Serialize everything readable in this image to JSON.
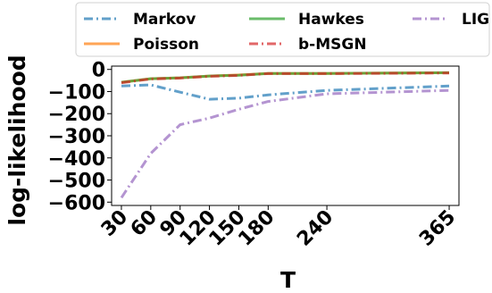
{
  "chart_data": {
    "type": "line",
    "xlabel": "T",
    "ylabel": "log-likelihood",
    "x": [
      30,
      60,
      90,
      120,
      150,
      180,
      240,
      365
    ],
    "xlim": [
      20,
      375
    ],
    "ylim": [
      -615,
      15
    ],
    "yticks": [
      0,
      -100,
      -200,
      -300,
      -400,
      -500,
      -600
    ],
    "yticklabels": [
      "0",
      "−100",
      "−200",
      "−300",
      "−400",
      "−500",
      "−600"
    ],
    "legend_position": "top",
    "series": [
      {
        "name": "Markov",
        "color": "#1f77b4",
        "dash": "dashdot",
        "values": [
          -75,
          -70,
          -103,
          -135,
          -130,
          -115,
          -95,
          -75
        ]
      },
      {
        "name": "Poisson",
        "color": "#ff7f0e",
        "dash": "solid",
        "values": [
          -58,
          -42,
          -38,
          -30,
          -25,
          -18,
          -18,
          -15
        ]
      },
      {
        "name": "Hawkes",
        "color": "#2ca02c",
        "dash": "solid",
        "values": [
          -58,
          -42,
          -38,
          -30,
          -26,
          -18,
          -18,
          -15
        ]
      },
      {
        "name": "b-MSGN",
        "color": "#d62728",
        "dash": "dashdot",
        "values": [
          -60,
          -43,
          -39,
          -31,
          -27,
          -19,
          -19,
          -16
        ]
      },
      {
        "name": "LIG",
        "color": "#9467bd",
        "dash": "dashdot",
        "values": [
          -580,
          -380,
          -250,
          -220,
          -180,
          -145,
          -110,
          -95
        ]
      }
    ]
  }
}
